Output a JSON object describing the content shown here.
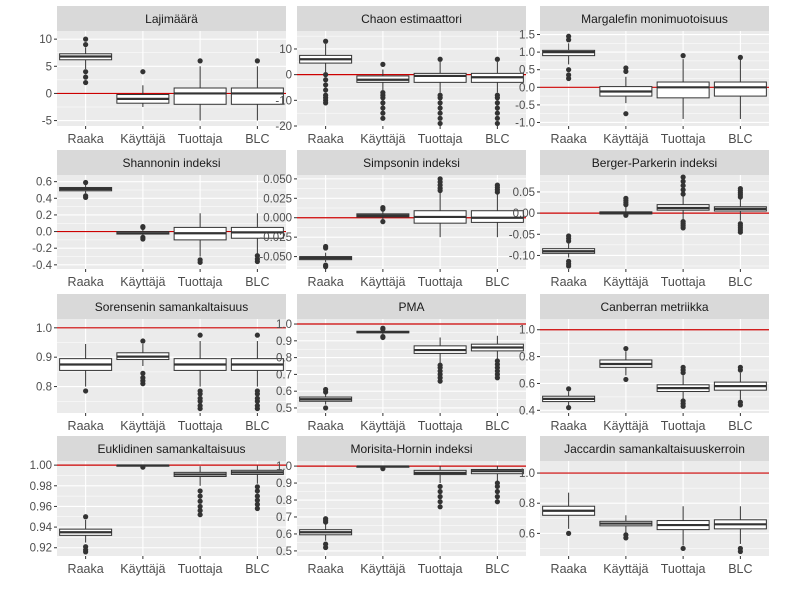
{
  "colors": {
    "panel_bg": "#ebebeb",
    "strip_bg": "#d9d9d9",
    "grid_major": "#ffffff",
    "reference_line": "#cc0000",
    "box_fill": "#ffffff",
    "box_stroke": "#333333",
    "tick_text": "#4d4d4d",
    "strip_text": "#1a1a1a"
  },
  "chart_data": [
    {
      "type": "boxplot",
      "title": "Lajimäärä",
      "categories": [
        "Raaka",
        "Käyttäjä",
        "Tuottaja",
        "BLC"
      ],
      "ylim": [
        -6,
        11.5
      ],
      "yticks": [
        -5,
        0,
        5,
        10
      ],
      "ytick_labels": [
        "-5",
        "0",
        "5",
        "10"
      ],
      "reference_line": 0,
      "boxes": [
        {
          "whisker_low": 4.5,
          "q1": 6.2,
          "median": 6.8,
          "q3": 7.3,
          "whisker_high": 8.5,
          "outliers": [
            2,
            3,
            4,
            9,
            10
          ]
        },
        {
          "whisker_low": -2.5,
          "q1": -1.8,
          "median": -1.0,
          "q3": -0.2,
          "whisker_high": 1.5,
          "outliers": [
            4
          ]
        },
        {
          "whisker_low": -5,
          "q1": -2,
          "median": 0,
          "q3": 1,
          "whisker_high": 5,
          "outliers": [
            6
          ]
        },
        {
          "whisker_low": -5,
          "q1": -2,
          "median": 0,
          "q3": 1,
          "whisker_high": 5,
          "outliers": [
            6
          ]
        }
      ]
    },
    {
      "type": "boxplot",
      "title": "Chaon estimaattori",
      "categories": [
        "Raaka",
        "Käyttäjä",
        "Tuottaja",
        "BLC"
      ],
      "ylim": [
        -20,
        17
      ],
      "yticks": [
        -20,
        -10,
        0,
        10
      ],
      "ytick_labels": [
        "-20",
        "-10",
        "0",
        "10"
      ],
      "reference_line": 0,
      "boxes": [
        {
          "whisker_low": 1,
          "q1": 4.5,
          "median": 6,
          "q3": 7.5,
          "whisker_high": 12,
          "outliers": [
            -11,
            -10,
            -9,
            -8,
            -6,
            -4,
            -2,
            0,
            13
          ]
        },
        {
          "whisker_low": -6,
          "q1": -3,
          "median": -2,
          "q3": -0.5,
          "whisker_high": 2,
          "outliers": [
            -17,
            -15,
            -13,
            -11,
            -9,
            -8,
            -7,
            4
          ]
        },
        {
          "whisker_low": -7,
          "q1": -3,
          "median": -0.5,
          "q3": 0.5,
          "whisker_high": 5,
          "outliers": [
            -19,
            -17,
            -15,
            -13,
            -11,
            -9,
            -8,
            6
          ]
        },
        {
          "whisker_low": -7,
          "q1": -3,
          "median": -1,
          "q3": 0.5,
          "whisker_high": 5,
          "outliers": [
            -19,
            -17,
            -15,
            -13,
            -11,
            -9,
            -8,
            6
          ]
        }
      ]
    },
    {
      "type": "boxplot",
      "title": "Margalefin monimuotoisuus",
      "categories": [
        "Raaka",
        "Käyttäjä",
        "Tuottaja",
        "BLC"
      ],
      "ylim": [
        -1.1,
        1.6
      ],
      "yticks": [
        -1.0,
        -0.5,
        0.0,
        0.5,
        1.0,
        1.5
      ],
      "ytick_labels": [
        "-1.0",
        "-0.5",
        "0.0",
        "0.5",
        "1.0",
        "1.5"
      ],
      "reference_line": 0,
      "boxes": [
        {
          "whisker_low": 0.65,
          "q1": 0.9,
          "median": 1.0,
          "q3": 1.05,
          "whisker_high": 1.25,
          "outliers": [
            0.25,
            0.35,
            0.5,
            1.35,
            1.45
          ]
        },
        {
          "whisker_low": -0.45,
          "q1": -0.25,
          "median": -0.12,
          "q3": 0.02,
          "whisker_high": 0.3,
          "outliers": [
            -0.75,
            0.45,
            0.55
          ]
        },
        {
          "whisker_low": -0.9,
          "q1": -0.3,
          "median": 0.0,
          "q3": 0.15,
          "whisker_high": 0.8,
          "outliers": [
            0.9
          ]
        },
        {
          "whisker_low": -0.9,
          "q1": -0.25,
          "median": 0.0,
          "q3": 0.15,
          "whisker_high": 0.8,
          "outliers": [
            0.85
          ]
        }
      ]
    },
    {
      "type": "boxplot",
      "title": "Shannonin indeksi",
      "categories": [
        "Raaka",
        "Käyttäjä",
        "Tuottaja",
        "BLC"
      ],
      "ylim": [
        -0.45,
        0.68
      ],
      "yticks": [
        -0.4,
        -0.2,
        0.0,
        0.2,
        0.4,
        0.6
      ],
      "ytick_labels": [
        "-0.4",
        "-0.2",
        "0.0",
        "0.2",
        "0.4",
        "0.6"
      ],
      "reference_line": 0,
      "boxes": [
        {
          "whisker_low": 0.46,
          "q1": 0.49,
          "median": 0.51,
          "q3": 0.53,
          "whisker_high": 0.56,
          "outliers": [
            0.41,
            0.43,
            0.59
          ]
        },
        {
          "whisker_low": -0.05,
          "q1": -0.03,
          "median": -0.02,
          "q3": 0.0,
          "whisker_high": 0.03,
          "outliers": [
            -0.09,
            -0.07,
            0.05,
            0.06
          ]
        },
        {
          "whisker_low": -0.3,
          "q1": -0.1,
          "median": -0.02,
          "q3": 0.05,
          "whisker_high": 0.22,
          "outliers": [
            -0.37,
            -0.34
          ]
        },
        {
          "whisker_low": -0.28,
          "q1": -0.08,
          "median": -0.01,
          "q3": 0.05,
          "whisker_high": 0.22,
          "outliers": [
            -0.36,
            -0.33,
            -0.29
          ]
        }
      ]
    },
    {
      "type": "boxplot",
      "title": "Simpsonin indeksi",
      "categories": [
        "Raaka",
        "Käyttäjä",
        "Tuottaja",
        "BLC"
      ],
      "ylim": [
        -0.066,
        0.055
      ],
      "yticks": [
        -0.05,
        -0.025,
        0.0,
        0.025,
        0.05
      ],
      "ytick_labels": [
        "-0.050",
        "-0.025",
        "0.000",
        "0.025",
        "0.050"
      ],
      "reference_line": 0,
      "boxes": [
        {
          "whisker_low": -0.057,
          "q1": -0.054,
          "median": -0.052,
          "q3": -0.05,
          "whisker_high": -0.045,
          "outliers": [
            -0.063,
            -0.061,
            -0.039,
            -0.037
          ]
        },
        {
          "whisker_low": -0.003,
          "q1": 0.001,
          "median": 0.003,
          "q3": 0.005,
          "whisker_high": 0.008,
          "outliers": [
            -0.005,
            0.011,
            0.013
          ]
        },
        {
          "whisker_low": -0.025,
          "q1": -0.007,
          "median": 0.001,
          "q3": 0.009,
          "whisker_high": 0.032,
          "outliers": [
            0.035,
            0.038,
            0.042,
            0.046,
            0.05
          ]
        },
        {
          "whisker_low": -0.025,
          "q1": -0.006,
          "median": 0.0,
          "q3": 0.009,
          "whisker_high": 0.03,
          "outliers": [
            0.033,
            0.036,
            0.039,
            0.042
          ]
        }
      ]
    },
    {
      "type": "boxplot",
      "title": "Berger-Parkerin indeksi",
      "categories": [
        "Raaka",
        "Käyttäjä",
        "Tuottaja",
        "BLC"
      ],
      "ylim": [
        -0.132,
        0.09
      ],
      "yticks": [
        -0.1,
        -0.05,
        0.0,
        0.05
      ],
      "ytick_labels": [
        "-0.10",
        "-0.05",
        "0.00",
        "0.05"
      ],
      "reference_line": 0,
      "boxes": [
        {
          "whisker_low": -0.105,
          "q1": -0.095,
          "median": -0.09,
          "q3": -0.084,
          "whisker_high": -0.072,
          "outliers": [
            -0.125,
            -0.12,
            -0.114,
            -0.066,
            -0.06,
            -0.054
          ]
        },
        {
          "whisker_low": -0.006,
          "q1": -0.002,
          "median": 0.0,
          "q3": 0.003,
          "whisker_high": 0.015,
          "outliers": [
            -0.005,
            0.02,
            0.025,
            0.03,
            0.035
          ]
        },
        {
          "whisker_low": -0.018,
          "q1": 0.007,
          "median": 0.012,
          "q3": 0.02,
          "whisker_high": 0.04,
          "outliers": [
            -0.035,
            -0.03,
            -0.025,
            -0.02,
            0.045,
            0.055,
            0.065,
            0.075,
            0.085
          ]
        },
        {
          "whisker_low": -0.018,
          "q1": 0.005,
          "median": 0.01,
          "q3": 0.015,
          "whisker_high": 0.035,
          "outliers": [
            -0.045,
            -0.04,
            -0.035,
            -0.03,
            -0.025,
            0.038,
            0.043,
            0.048,
            0.053,
            0.058
          ]
        }
      ]
    },
    {
      "type": "boxplot",
      "title": "Sorensenin samankaltaisuus",
      "categories": [
        "Raaka",
        "Käyttäjä",
        "Tuottaja",
        "BLC"
      ],
      "ylim": [
        0.71,
        1.03
      ],
      "yticks": [
        0.8,
        0.9,
        1.0
      ],
      "ytick_labels": [
        "0.8",
        "0.9",
        "1.0"
      ],
      "reference_line": 1.0,
      "boxes": [
        {
          "whisker_low": 0.8,
          "q1": 0.855,
          "median": 0.875,
          "q3": 0.895,
          "whisker_high": 0.945,
          "outliers": [
            0.785
          ]
        },
        {
          "whisker_low": 0.87,
          "q1": 0.892,
          "median": 0.902,
          "q3": 0.915,
          "whisker_high": 0.945,
          "outliers": [
            0.81,
            0.82,
            0.83,
            0.845,
            0.955
          ]
        },
        {
          "whisker_low": 0.8,
          "q1": 0.855,
          "median": 0.875,
          "q3": 0.895,
          "whisker_high": 0.955,
          "outliers": [
            0.725,
            0.735,
            0.75,
            0.76,
            0.775,
            0.785,
            0.975
          ]
        },
        {
          "whisker_low": 0.8,
          "q1": 0.855,
          "median": 0.875,
          "q3": 0.895,
          "whisker_high": 0.955,
          "outliers": [
            0.725,
            0.735,
            0.75,
            0.76,
            0.775,
            0.785,
            0.975
          ]
        }
      ]
    },
    {
      "type": "boxplot",
      "title": "PMA",
      "categories": [
        "Raaka",
        "Käyttäjä",
        "Tuottaja",
        "BLC"
      ],
      "ylim": [
        0.47,
        1.03
      ],
      "yticks": [
        0.5,
        0.6,
        0.7,
        0.8,
        0.9,
        1.0
      ],
      "ytick_labels": [
        "0.5",
        "0.6",
        "0.7",
        "0.8",
        "0.9",
        "1.0"
      ],
      "reference_line": 1.0,
      "boxes": [
        {
          "whisker_low": 0.52,
          "q1": 0.54,
          "median": 0.552,
          "q3": 0.565,
          "whisker_high": 0.585,
          "outliers": [
            0.5,
            0.595,
            0.61
          ]
        },
        {
          "whisker_low": 0.94,
          "q1": 0.948,
          "median": 0.952,
          "q3": 0.957,
          "whisker_high": 0.965,
          "outliers": [
            0.92,
            0.925,
            0.97,
            0.975
          ]
        },
        {
          "whisker_low": 0.77,
          "q1": 0.825,
          "median": 0.845,
          "q3": 0.87,
          "whisker_high": 0.92,
          "outliers": [
            0.66,
            0.68,
            0.7,
            0.72,
            0.74,
            0.755
          ]
        },
        {
          "whisker_low": 0.79,
          "q1": 0.84,
          "median": 0.86,
          "q3": 0.88,
          "whisker_high": 0.93,
          "outliers": [
            0.68,
            0.7,
            0.72,
            0.74,
            0.76,
            0.78
          ]
        }
      ]
    },
    {
      "type": "boxplot",
      "title": "Canberran metriikka",
      "categories": [
        "Raaka",
        "Käyttäjä",
        "Tuottaja",
        "BLC"
      ],
      "ylim": [
        0.38,
        1.08
      ],
      "yticks": [
        0.4,
        0.6,
        0.8,
        1.0
      ],
      "ytick_labels": [
        "0.4",
        "0.6",
        "0.8",
        "1.0"
      ],
      "reference_line": 1.0,
      "boxes": [
        {
          "whisker_low": 0.43,
          "q1": 0.465,
          "median": 0.485,
          "q3": 0.505,
          "whisker_high": 0.54,
          "outliers": [
            0.42,
            0.56
          ]
        },
        {
          "whisker_low": 0.66,
          "q1": 0.72,
          "median": 0.745,
          "q3": 0.775,
          "whisker_high": 0.84,
          "outliers": [
            0.63,
            0.86
          ]
        },
        {
          "whisker_low": 0.47,
          "q1": 0.54,
          "median": 0.565,
          "q3": 0.59,
          "whisker_high": 0.66,
          "outliers": [
            0.43,
            0.45,
            0.47,
            0.68,
            0.7,
            0.72
          ]
        },
        {
          "whisker_low": 0.48,
          "q1": 0.55,
          "median": 0.58,
          "q3": 0.61,
          "whisker_high": 0.68,
          "outliers": [
            0.44,
            0.46,
            0.7,
            0.72
          ]
        }
      ]
    },
    {
      "type": "boxplot",
      "title": "Euklidinen samankaltaisuus",
      "categories": [
        "Raaka",
        "Käyttäjä",
        "Tuottaja",
        "BLC"
      ],
      "ylim": [
        0.912,
        1.004
      ],
      "yticks": [
        0.92,
        0.94,
        0.96,
        0.98,
        1.0
      ],
      "ytick_labels": [
        "0.92",
        "0.94",
        "0.96",
        "0.98",
        "1.00"
      ],
      "reference_line": 1.0,
      "boxes": [
        {
          "whisker_low": 0.925,
          "q1": 0.932,
          "median": 0.935,
          "q3": 0.938,
          "whisker_high": 0.947,
          "outliers": [
            0.916,
            0.918,
            0.921,
            0.95
          ]
        },
        {
          "whisker_low": 0.9992,
          "q1": 0.9995,
          "median": 0.9997,
          "q3": 0.9999,
          "whisker_high": 1.0,
          "outliers": [
            0.998
          ]
        },
        {
          "whisker_low": 0.98,
          "q1": 0.989,
          "median": 0.991,
          "q3": 0.993,
          "whisker_high": 0.999,
          "outliers": [
            0.952,
            0.956,
            0.96,
            0.965,
            0.97,
            0.975
          ]
        },
        {
          "whisker_low": 0.982,
          "q1": 0.991,
          "median": 0.993,
          "q3": 0.995,
          "whisker_high": 0.9995,
          "outliers": [
            0.958,
            0.962,
            0.966,
            0.97,
            0.975,
            0.979
          ]
        }
      ]
    },
    {
      "type": "boxplot",
      "title": "Morisita-Hornin indeksi",
      "categories": [
        "Raaka",
        "Käyttäjä",
        "Tuottaja",
        "BLC"
      ],
      "ylim": [
        0.47,
        1.03
      ],
      "yticks": [
        0.5,
        0.6,
        0.7,
        0.8,
        0.9,
        1.0
      ],
      "ytick_labels": [
        "0.5",
        "0.6",
        "0.7",
        "0.8",
        "0.9",
        "1.0"
      ],
      "reference_line": 1.0,
      "boxes": [
        {
          "whisker_low": 0.56,
          "q1": 0.595,
          "median": 0.61,
          "q3": 0.625,
          "whisker_high": 0.66,
          "outliers": [
            0.52,
            0.54,
            0.67,
            0.68,
            0.69
          ]
        },
        {
          "whisker_low": 0.995,
          "q1": 0.997,
          "median": 0.998,
          "q3": 0.999,
          "whisker_high": 1.0,
          "outliers": [
            0.985
          ]
        },
        {
          "whisker_low": 0.9,
          "q1": 0.95,
          "median": 0.96,
          "q3": 0.975,
          "whisker_high": 1.0,
          "outliers": [
            0.76,
            0.79,
            0.82,
            0.85,
            0.88
          ]
        },
        {
          "whisker_low": 0.91,
          "q1": 0.955,
          "median": 0.97,
          "q3": 0.98,
          "whisker_high": 1.0,
          "outliers": [
            0.79,
            0.82,
            0.85,
            0.88,
            0.9
          ]
        }
      ]
    },
    {
      "type": "boxplot",
      "title": "Jaccardin samankaltaisuuskerroin",
      "categories": [
        "Raaka",
        "Käyttäjä",
        "Tuottaja",
        "BLC"
      ],
      "ylim": [
        0.45,
        1.08
      ],
      "yticks": [
        0.6,
        0.8,
        1.0
      ],
      "ytick_labels": [
        "0.6",
        "0.8",
        "1.0"
      ],
      "reference_line": 1.0,
      "boxes": [
        {
          "whisker_low": 0.63,
          "q1": 0.72,
          "median": 0.75,
          "q3": 0.78,
          "whisker_high": 0.87,
          "outliers": [
            0.6
          ]
        },
        {
          "whisker_low": 0.6,
          "q1": 0.65,
          "median": 0.665,
          "q3": 0.68,
          "whisker_high": 0.72,
          "outliers": [
            0.57,
            0.59
          ]
        },
        {
          "whisker_low": 0.52,
          "q1": 0.625,
          "median": 0.655,
          "q3": 0.685,
          "whisker_high": 0.78,
          "outliers": [
            0.5
          ]
        },
        {
          "whisker_low": 0.53,
          "q1": 0.63,
          "median": 0.66,
          "q3": 0.69,
          "whisker_high": 0.78,
          "outliers": [
            0.48,
            0.5
          ]
        }
      ]
    }
  ]
}
